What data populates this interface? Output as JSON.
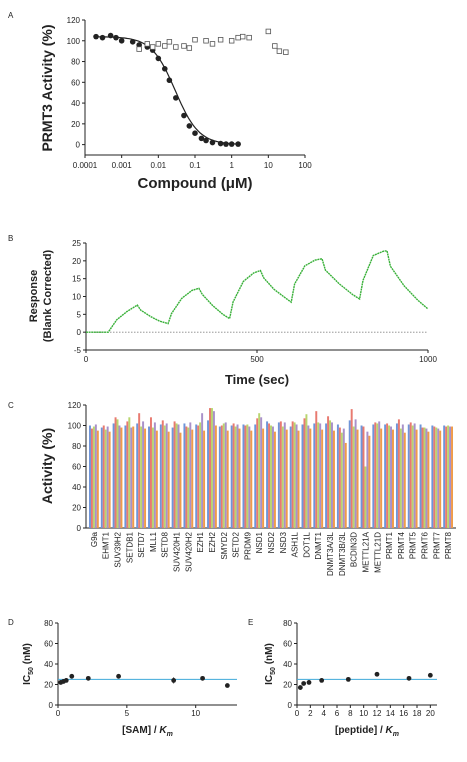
{
  "chart_data": [
    {
      "panel": "A",
      "type": "scatter",
      "ylabel": "PRMT3 Activity (%)",
      "xlabel": "Compound (μM)",
      "xscale": "log",
      "xlim": [
        0.0001,
        100
      ],
      "ylim": [
        -10,
        120
      ],
      "x_ticks": [
        "0.0001",
        "0.001",
        "0.01",
        "0.1",
        "1",
        "10",
        "100"
      ],
      "y_ticks": [
        "0",
        "20",
        "40",
        "60",
        "80",
        "100",
        "120"
      ],
      "series": [
        {
          "marker": "filled-circle",
          "fit": "sigmoid",
          "x": [
            0.0002,
            0.0003,
            0.0005,
            0.0007,
            0.001,
            0.002,
            0.003,
            0.005,
            0.007,
            0.01,
            0.015,
            0.02,
            0.03,
            0.05,
            0.07,
            0.1,
            0.15,
            0.2,
            0.3,
            0.5,
            0.7,
            1,
            1.5
          ],
          "y": [
            104,
            103,
            105,
            103,
            100,
            99,
            96,
            94,
            91,
            83,
            73,
            62,
            45,
            28,
            18,
            11,
            6,
            4,
            2,
            1,
            0.5,
            0.5,
            0.5
          ]
        },
        {
          "marker": "open-square",
          "x": [
            0.003,
            0.005,
            0.007,
            0.01,
            0.015,
            0.02,
            0.03,
            0.05,
            0.07,
            0.1,
            0.2,
            0.3,
            0.5,
            1,
            1.5,
            2,
            3,
            10,
            15,
            20,
            30
          ],
          "y": [
            92,
            97,
            94,
            97,
            95,
            99,
            94,
            95,
            93,
            101,
            100,
            97,
            101,
            100,
            103,
            104,
            103,
            109,
            95,
            90,
            89
          ]
        }
      ]
    },
    {
      "panel": "B",
      "type": "line",
      "ylabel": "Response (Blank Corrected)",
      "xlabel": "Time (sec)",
      "xlim": [
        0,
        1000
      ],
      "ylim": [
        -5,
        25
      ],
      "x_ticks": [
        "0",
        "500",
        "1000"
      ],
      "y_ticks": [
        "-5",
        "0",
        "5",
        "10",
        "15",
        "20",
        "25"
      ],
      "series": [
        {
          "x": [
            0,
            60,
            65,
            90,
            120,
            150,
            160,
            190,
            215,
            240,
            250,
            280,
            310,
            330,
            340,
            370,
            400,
            420,
            430,
            460,
            490,
            510,
            520,
            550,
            580,
            600,
            610,
            640,
            670,
            690,
            700,
            740,
            780,
            800,
            810,
            840,
            870,
            880,
            890,
            930,
            970,
            1000
          ],
          "y": [
            0,
            0,
            0,
            3.5,
            5.8,
            7.6,
            6.2,
            4.3,
            3.1,
            2.4,
            5.2,
            9.5,
            11.7,
            12.3,
            10.6,
            7.5,
            5.0,
            3.8,
            8.5,
            14.2,
            16.6,
            17.3,
            15.2,
            12.0,
            9.8,
            8.4,
            13.5,
            18.6,
            20.2,
            20.6,
            17.4,
            13.6,
            10.5,
            9.3,
            14.5,
            21.5,
            22.7,
            22.8,
            18.5,
            13.0,
            9.0,
            6.5
          ]
        }
      ]
    },
    {
      "panel": "C",
      "type": "bar",
      "ylabel": "Activity (%)",
      "ylim": [
        0,
        120
      ],
      "y_ticks": [
        "0",
        "20",
        "40",
        "60",
        "80",
        "100",
        "120"
      ],
      "categories": [
        "G9a",
        "EHMT1",
        "SUV39H2",
        "SETDB1",
        "SETD7",
        "MLL1",
        "SETD8",
        "SUV420H1",
        "SUV420H2",
        "EZH1",
        "EZH2",
        "SMYD2",
        "SETD2",
        "PRDM9",
        "NSD1",
        "NSD2",
        "NSD3",
        "ASH1L",
        "DOT1L",
        "DNMT1",
        "DNMT3A/3L",
        "DNMT3B/3L",
        "BCDIN3D",
        "METTL21A",
        "METTL21D",
        "PRMT1",
        "PRMT4",
        "PRMT5",
        "PRMT6",
        "PRMT7",
        "PRMT8"
      ],
      "series": [
        {
          "color": "#6f95d9",
          "values": [
            100,
            98,
            102,
            100,
            102,
            99,
            101,
            98,
            102,
            101,
            105,
            99,
            100,
            101,
            101,
            104,
            103,
            99,
            101,
            102,
            102,
            101,
            105,
            100,
            101,
            101,
            102,
            101,
            101,
            100,
            100
          ]
        },
        {
          "color": "#e87a70",
          "values": [
            97,
            100,
            108,
            104,
            112,
            108,
            105,
            104,
            99,
            100,
            117,
            100,
            102,
            100,
            107,
            102,
            104,
            104,
            107,
            114,
            109,
            98,
            116,
            99,
            103,
            102,
            106,
            103,
            98,
            99,
            99
          ]
        },
        {
          "color": "#b9d56f",
          "values": [
            99,
            96,
            106,
            108,
            99,
            98,
            100,
            102,
            98,
            103,
            117,
            102,
            99,
            101,
            112,
            100,
            99,
            103,
            111,
            103,
            105,
            93,
            99,
            60,
            102,
            100,
            97,
            100,
            98,
            98,
            100
          ]
        },
        {
          "color": "#a991c9",
          "values": [
            101,
            99,
            100,
            98,
            104,
            103,
            102,
            101,
            103,
            112,
            114,
            103,
            101,
            99,
            108,
            99,
            103,
            101,
            100,
            102,
            103,
            97,
            106,
            94,
            104,
            99,
            101,
            102,
            97,
            97,
            99
          ]
        },
        {
          "color": "#ef9b4a",
          "values": [
            95,
            94,
            98,
            99,
            97,
            95,
            94,
            93,
            96,
            95,
            100,
            95,
            97,
            95,
            97,
            94,
            96,
            95,
            97,
            96,
            95,
            83,
            96,
            90,
            97,
            96,
            93,
            96,
            94,
            95,
            99
          ]
        }
      ]
    },
    {
      "panel": "D",
      "type": "scatter",
      "ylabel": "IC50 (nM)",
      "xlabel": "[SAM] / Km",
      "xlim": [
        0,
        13
      ],
      "ylim": [
        0,
        80
      ],
      "x_ticks": [
        "0",
        "5",
        "10"
      ],
      "y_ticks": [
        "0",
        "20",
        "40",
        "60",
        "80"
      ],
      "reference_line": 25,
      "series": [
        {
          "x": [
            0.2,
            0.4,
            0.6,
            1.0,
            2.2,
            4.4,
            8.4,
            10.5,
            12.3
          ],
          "y": [
            22,
            23,
            24,
            28,
            26,
            28,
            24,
            26,
            19
          ],
          "err": [
            2,
            2,
            2,
            1,
            1,
            1,
            3,
            1,
            1
          ]
        }
      ]
    },
    {
      "panel": "E",
      "type": "scatter",
      "ylabel": "IC50 (nM)",
      "xlabel": "[peptide] / Km",
      "xlim": [
        0,
        21
      ],
      "ylim": [
        0,
        80
      ],
      "x_ticks": [
        "0",
        "2",
        "4",
        "6",
        "8",
        "10",
        "12",
        "14",
        "16",
        "18",
        "20"
      ],
      "y_ticks": [
        "0",
        "20",
        "40",
        "60",
        "80"
      ],
      "reference_line": 25,
      "series": [
        {
          "x": [
            0.5,
            1.0,
            1.8,
            3.7,
            7.7,
            12.0,
            16.8,
            20.0
          ],
          "y": [
            17,
            21,
            22,
            24,
            25,
            30,
            26,
            29
          ],
          "err": [
            1,
            1,
            1,
            1,
            1,
            1,
            1,
            1
          ]
        }
      ]
    }
  ]
}
